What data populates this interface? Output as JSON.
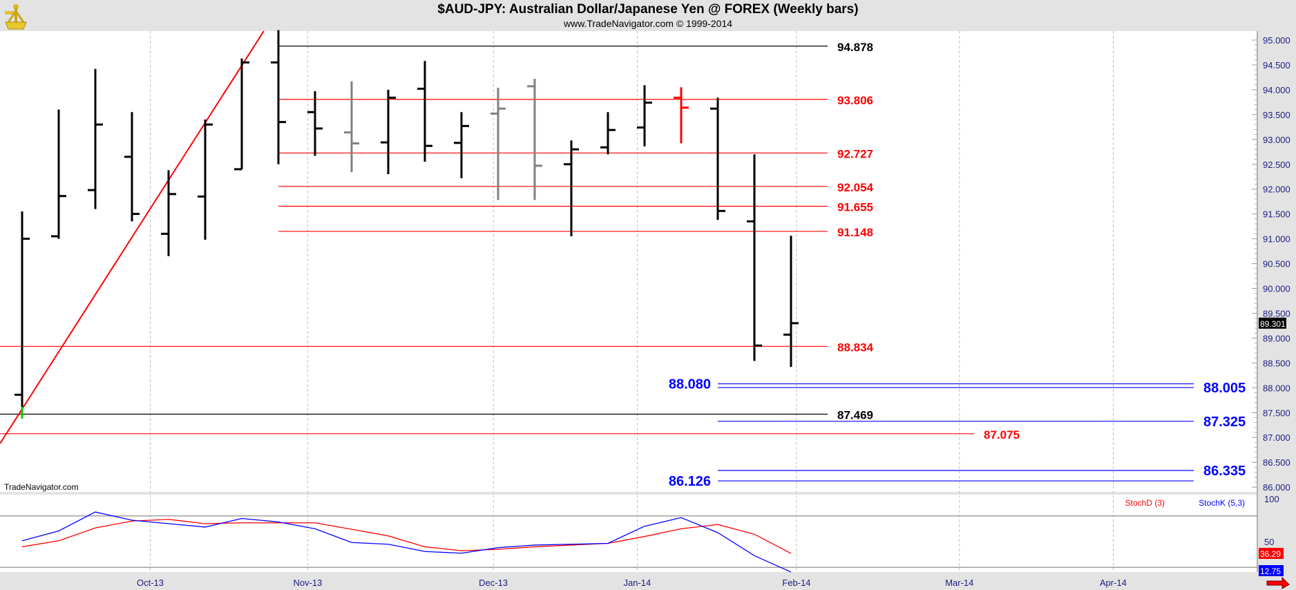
{
  "header": {
    "title": "$AUD-JPY:  Australian Dollar/Japanese Yen @ FOREX  (Weekly bars)",
    "subtitle": "www.TradeNavigator.com © 1999-2014",
    "logo_icon": "sextant-logo-icon"
  },
  "watermark": "TradeNavigator.com",
  "colors": {
    "up": "#000000",
    "gray": "#808080",
    "red": "#ff0000",
    "blue": "#0000ff",
    "green": "#00cc00",
    "axis_text": "#1c1c80"
  },
  "chart_data": {
    "type": "ohlc",
    "title": "$AUD-JPY: Australian Dollar/Japanese Yen @ FOREX (Weekly bars)",
    "ylim": [
      86.0,
      95.0
    ],
    "yticks": [
      "95.000",
      "94.500",
      "94.000",
      "93.500",
      "93.000",
      "92.500",
      "92.000",
      "91.500",
      "91.000",
      "90.500",
      "90.000",
      "89.500",
      "89.000",
      "88.500",
      "88.000",
      "87.500",
      "87.000",
      "86.500",
      "86.000"
    ],
    "last_price": "89.301",
    "xticks": [
      {
        "label": "Oct-13",
        "bar": 3.5
      },
      {
        "label": "Nov-13",
        "bar": 7.8
      },
      {
        "label": "Dec-13",
        "bar": 12.87
      },
      {
        "label": "Jan-14",
        "bar": 16.8
      },
      {
        "label": "Feb-14",
        "bar": 21.15
      },
      {
        "label": "Mar-14",
        "bar": 25.6
      },
      {
        "label": "Apr-14",
        "bar": 29.8
      }
    ],
    "bars": [
      {
        "o": 87.86,
        "h": 91.55,
        "l": 87.38,
        "c": 91.0,
        "color": "black"
      },
      {
        "o": 91.05,
        "h": 93.6,
        "l": 91.0,
        "c": 91.86,
        "color": "black"
      },
      {
        "o": 91.98,
        "h": 94.42,
        "l": 91.6,
        "c": 93.3,
        "color": "black"
      },
      {
        "o": 92.65,
        "h": 93.55,
        "l": 91.35,
        "c": 91.5,
        "color": "black"
      },
      {
        "o": 91.1,
        "h": 92.38,
        "l": 90.65,
        "c": 91.9,
        "color": "black"
      },
      {
        "o": 91.85,
        "h": 93.4,
        "l": 90.98,
        "c": 93.3,
        "color": "black"
      },
      {
        "o": 92.4,
        "h": 94.63,
        "l": 92.4,
        "c": 94.55,
        "color": "black"
      },
      {
        "o": 94.55,
        "h": 95.2,
        "l": 92.5,
        "c": 93.35,
        "color": "black"
      },
      {
        "o": 93.55,
        "h": 93.97,
        "l": 92.67,
        "c": 93.22,
        "color": "black"
      },
      {
        "o": 93.14,
        "h": 94.17,
        "l": 92.34,
        "c": 92.92,
        "color": "gray"
      },
      {
        "o": 92.94,
        "h": 94.0,
        "l": 92.3,
        "c": 93.84,
        "color": "black"
      },
      {
        "o": 94.02,
        "h": 94.58,
        "l": 92.55,
        "c": 92.87,
        "color": "black"
      },
      {
        "o": 92.93,
        "h": 93.55,
        "l": 92.22,
        "c": 93.27,
        "color": "black"
      },
      {
        "o": 93.52,
        "h": 94.04,
        "l": 91.78,
        "c": 93.62,
        "color": "gray"
      },
      {
        "o": 94.07,
        "h": 94.22,
        "l": 91.78,
        "c": 92.47,
        "color": "gray"
      },
      {
        "o": 92.5,
        "h": 92.98,
        "l": 91.05,
        "c": 92.8,
        "color": "black"
      },
      {
        "o": 92.84,
        "h": 93.55,
        "l": 92.7,
        "c": 93.19,
        "color": "black"
      },
      {
        "o": 93.24,
        "h": 94.09,
        "l": 92.86,
        "c": 93.74,
        "color": "black"
      },
      {
        "o": 93.84,
        "h": 94.05,
        "l": 92.92,
        "c": 93.64,
        "color": "red"
      },
      {
        "o": 93.62,
        "h": 93.84,
        "l": 91.38,
        "c": 91.56,
        "color": "black"
      },
      {
        "o": 91.35,
        "h": 92.7,
        "l": 88.54,
        "c": 88.85,
        "color": "black"
      },
      {
        "o": 89.07,
        "h": 91.06,
        "l": 88.42,
        "c": 89.3,
        "color": "black"
      }
    ],
    "levels": [
      {
        "value": 94.878,
        "label": "94.878",
        "color": "black",
        "from": 7,
        "to": 22,
        "side": "right"
      },
      {
        "value": 93.806,
        "label": "93.806",
        "color": "red",
        "from": 7,
        "to": 22,
        "side": "right"
      },
      {
        "value": 92.727,
        "label": "92.727",
        "color": "red",
        "from": 7,
        "to": 22,
        "side": "right"
      },
      {
        "value": 92.054,
        "label": "92.054",
        "color": "red",
        "from": 7,
        "to": 22,
        "side": "right"
      },
      {
        "value": 91.655,
        "label": "91.655",
        "color": "red",
        "from": 7,
        "to": 22,
        "side": "right"
      },
      {
        "value": 91.148,
        "label": "91.148",
        "color": "red",
        "from": 7,
        "to": 22,
        "side": "right"
      },
      {
        "value": 88.834,
        "label": "88.834",
        "color": "red",
        "from": -0.7,
        "to": 22,
        "side": "right"
      },
      {
        "value": 88.08,
        "label": "88.080",
        "color": "blue",
        "from": 19,
        "to": 32,
        "side": "left"
      },
      {
        "value": 88.005,
        "label": "88.005",
        "color": "blue",
        "from": 19,
        "to": 32,
        "side": "right"
      },
      {
        "value": 87.469,
        "label": "87.469",
        "color": "black",
        "from": -0.7,
        "to": 22,
        "side": "right"
      },
      {
        "value": 87.325,
        "label": "87.325",
        "color": "blue",
        "from": 19,
        "to": 32,
        "side": "right"
      },
      {
        "value": 87.075,
        "label": "87.075",
        "color": "red",
        "from": -0.7,
        "to": 26,
        "side": "right"
      },
      {
        "value": 86.335,
        "label": "86.335",
        "color": "blue",
        "from": 19,
        "to": 32,
        "side": "right"
      },
      {
        "value": 86.126,
        "label": "86.126",
        "color": "blue",
        "from": 19,
        "to": 32,
        "side": "left"
      }
    ],
    "trendline": {
      "from": {
        "bar": -0.6,
        "price": 86.88
      },
      "to": {
        "bar": 6.6,
        "price": 95.18
      },
      "color": "red"
    },
    "indicator": {
      "yticks": [
        "100",
        "50"
      ],
      "guides": [
        80,
        20
      ],
      "stochD": {
        "name": "StochD (3)",
        "last": "36.29",
        "values": [
          44,
          51,
          66,
          74,
          76,
          71,
          72,
          72,
          72,
          64.4,
          56.7,
          44,
          39.4,
          41,
          44,
          46,
          48,
          56,
          65,
          70,
          58.6,
          36.29
        ]
      },
      "stochK": {
        "name": "StochK (5,3)",
        "last": "12.75",
        "values": [
          51,
          62.5,
          84.6,
          75,
          71,
          67,
          77,
          73,
          65,
          49,
          47,
          38.5,
          36.5,
          43,
          46,
          47,
          48,
          68,
          78,
          60.5,
          33.6,
          12.75
        ]
      }
    }
  }
}
